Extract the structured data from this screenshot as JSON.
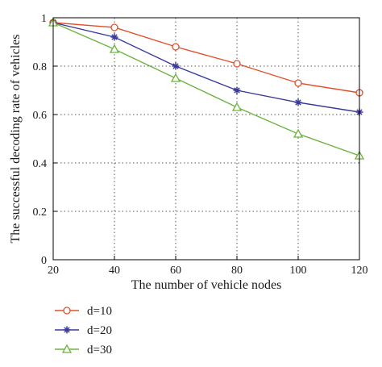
{
  "chart_data": {
    "type": "line",
    "xlabel": "The number of vehicle nodes",
    "ylabel": "The successful decoding rate of vehicles",
    "x": [
      20,
      40,
      60,
      80,
      100,
      120
    ],
    "xlim": [
      20,
      120
    ],
    "ylim": [
      0,
      1
    ],
    "x_ticks": [
      "20",
      "40",
      "60",
      "80",
      "100",
      "120"
    ],
    "y_ticks": [
      "0",
      "0.2",
      "0.4",
      "0.6",
      "0.8",
      "1"
    ],
    "grid": "dotted",
    "legend_position": "below",
    "series": [
      {
        "name": "d=10",
        "values": [
          0.98,
          0.96,
          0.88,
          0.81,
          0.73,
          0.69
        ],
        "color": "#e0502a",
        "marker": "circle"
      },
      {
        "name": "d=20",
        "values": [
          0.98,
          0.92,
          0.8,
          0.7,
          0.65,
          0.61
        ],
        "color": "#3a3a9a",
        "marker": "star"
      },
      {
        "name": "d=30",
        "values": [
          0.98,
          0.87,
          0.75,
          0.63,
          0.52,
          0.43
        ],
        "color": "#6db33f",
        "marker": "triangle"
      }
    ]
  }
}
